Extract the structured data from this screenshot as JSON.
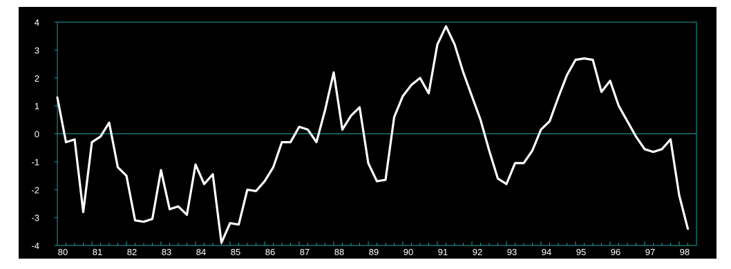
{
  "colors": {
    "background": "#000000",
    "frame": "#1aa3a3",
    "line": "#ffffff",
    "text": "#ffffff",
    "zero_line": "#1aa3a3"
  },
  "chart_data": {
    "type": "line",
    "title": "",
    "xlabel": "",
    "ylabel": "",
    "x_ticks": [
      "80",
      "81",
      "82",
      "83",
      "84",
      "85",
      "86",
      "87",
      "88",
      "89",
      "90",
      "91",
      "92",
      "93",
      "94",
      "95",
      "96",
      "97",
      "98"
    ],
    "y_ticks": [
      4,
      3,
      2,
      1,
      0,
      -1,
      -2,
      -3,
      -4
    ],
    "ylim": [
      -4,
      4
    ],
    "xlim": [
      1980.0,
      1998.5
    ],
    "grid": false,
    "reference_line_y": 0,
    "series": [
      {
        "x": [
          1980.0,
          1980.25,
          1980.5,
          1980.75,
          1981.0,
          1981.25,
          1981.5,
          1981.75,
          1982.0,
          1982.25,
          1982.5,
          1982.75,
          1983.0,
          1983.25,
          1983.5,
          1983.75,
          1984.0,
          1984.25,
          1984.5,
          1984.75,
          1985.0,
          1985.25,
          1985.5,
          1985.75,
          1986.0,
          1986.25,
          1986.5,
          1986.75,
          1987.0,
          1987.25,
          1987.5,
          1987.75,
          1988.0,
          1988.25,
          1988.5,
          1988.75,
          1989.0,
          1989.25,
          1989.5,
          1989.75,
          1990.0,
          1990.25,
          1990.5,
          1990.75,
          1991.0,
          1991.25,
          1991.5,
          1991.75,
          1992.0,
          1992.25,
          1992.5,
          1992.75,
          1993.0,
          1993.25,
          1993.5,
          1993.75,
          1994.0,
          1994.25,
          1994.5,
          1994.75,
          1995.0,
          1995.25,
          1995.5,
          1995.75,
          1996.0,
          1996.25,
          1996.5,
          1996.75,
          1997.0,
          1997.25,
          1997.5,
          1997.75,
          1998.0,
          1998.25
        ],
        "values": [
          1.3,
          -0.3,
          -0.2,
          -2.8,
          -0.3,
          -0.1,
          0.4,
          -1.2,
          -1.5,
          -3.1,
          -3.15,
          -3.05,
          -1.3,
          -2.7,
          -2.6,
          -2.9,
          -1.1,
          -1.8,
          -1.45,
          -3.9,
          -3.2,
          -3.25,
          -2.0,
          -2.05,
          -1.7,
          -1.2,
          -0.3,
          -0.3,
          0.25,
          0.15,
          -0.3,
          0.85,
          2.2,
          0.15,
          0.65,
          0.95,
          -1.05,
          -1.7,
          -1.65,
          0.6,
          1.35,
          1.75,
          2.0,
          1.45,
          3.2,
          3.85,
          3.2,
          2.2,
          1.35,
          0.5,
          -0.6,
          -1.6,
          -1.8,
          -1.05,
          -1.05,
          -0.6,
          0.15,
          0.45,
          1.3,
          2.1,
          2.65,
          2.7,
          2.65,
          1.5,
          1.9,
          1.0,
          0.45,
          -0.1,
          -0.55,
          -0.65,
          -0.55,
          -0.2,
          -2.2,
          -3.4
        ]
      }
    ]
  }
}
